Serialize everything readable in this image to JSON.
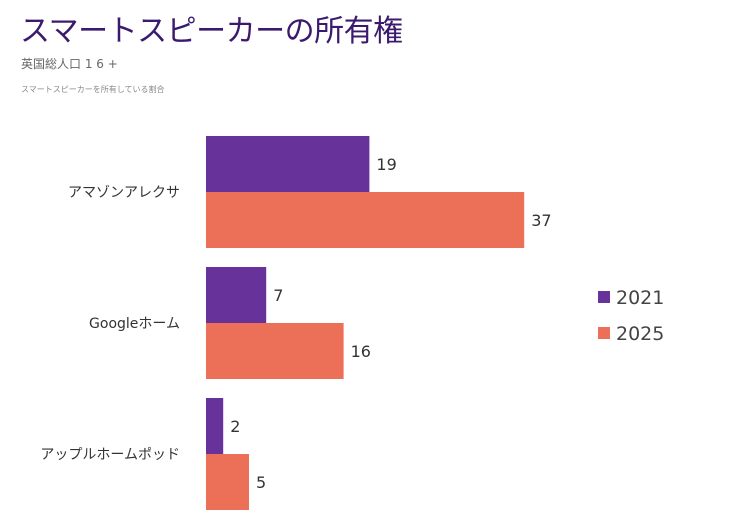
{
  "chart_data": {
    "type": "bar",
    "orientation": "horizontal",
    "title": "スマートスピーカーの所有権",
    "subtitle": "英国総人口 1 6 +",
    "note": "スマートスピーカーを所有している割合",
    "categories": [
      "アマゾンアレクサ",
      "Googleホーム",
      "アップルホームポッド"
    ],
    "series": [
      {
        "name": "2021",
        "values": [
          19,
          7,
          2
        ],
        "color": "#673299"
      },
      {
        "name": "2025",
        "values": [
          37,
          16,
          5
        ],
        "color": "#ec7057"
      }
    ],
    "xlim": [
      0,
      40
    ],
    "grid": false,
    "legend": "right"
  }
}
